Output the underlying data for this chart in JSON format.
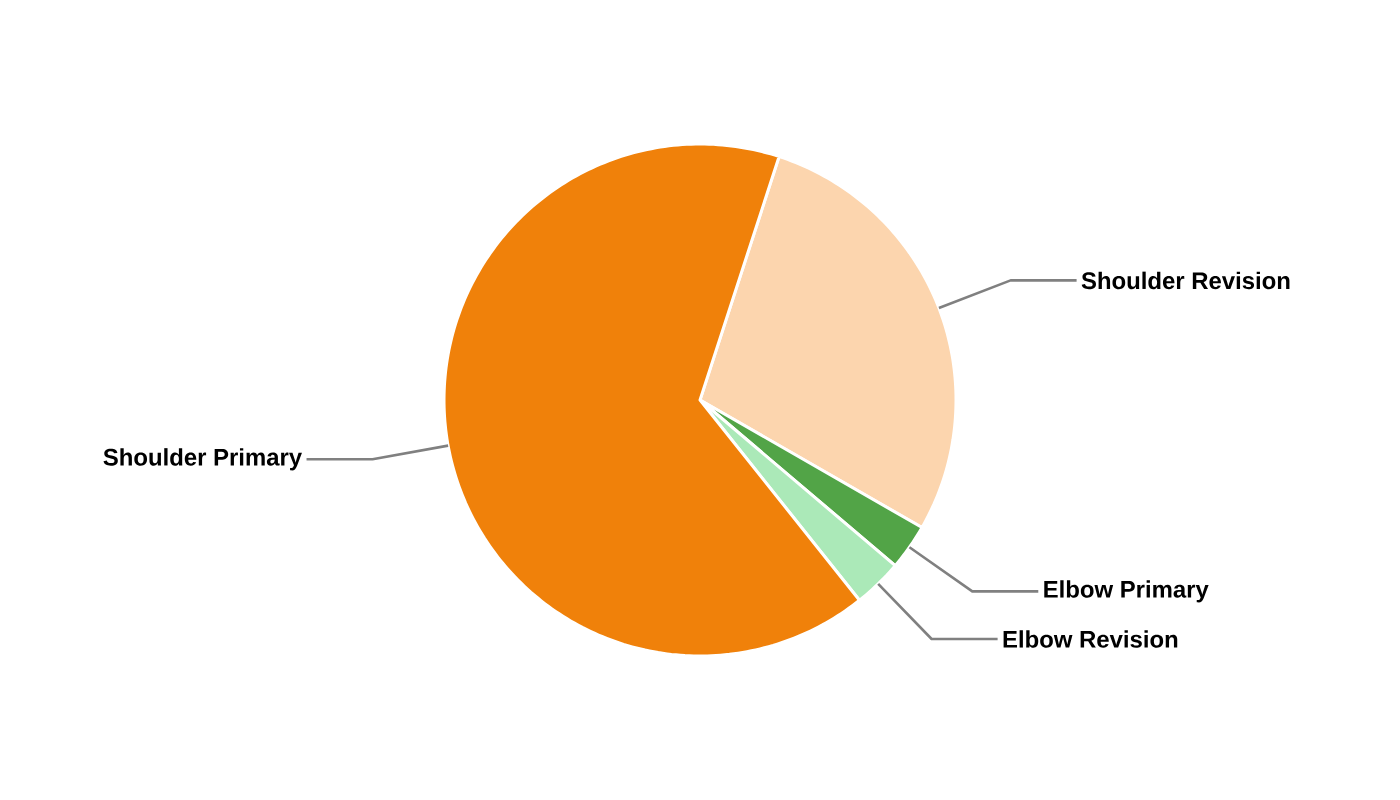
{
  "chart_data": {
    "type": "pie",
    "categories": [
      "Shoulder Revision",
      "Elbow Primary",
      "Elbow Revision",
      "Shoulder Primary"
    ],
    "values": [
      28.3,
      2.9,
      3.1,
      65.7
    ],
    "colors": [
      "#fcd5ae",
      "#52a447",
      "#abe9b8",
      "#f0810a"
    ]
  }
}
